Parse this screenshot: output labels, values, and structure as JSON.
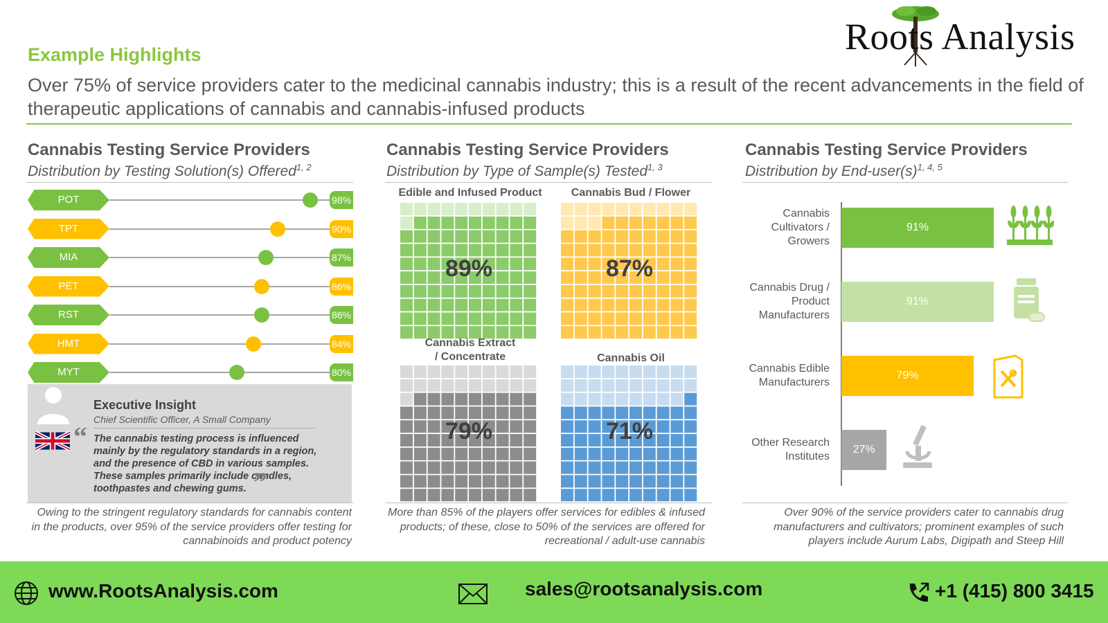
{
  "brand": {
    "name": "Roots Analysis"
  },
  "header": {
    "eyebrow": "Example Highlights",
    "headline": "Over 75% of service providers cater to the medicinal cannabis industry; this is a result of the recent advancements in the field of therapeutic applications of cannabis and cannabis-infused products"
  },
  "panels": [
    {
      "title": "Cannabis Testing Service Providers",
      "subtitle": "Distribution by Testing Solution(s) Offered",
      "sup": "1, 2",
      "footnote": "Owing to the stringent regulatory standards for cannabis content in the products, over 95% of the service providers offer testing for cannabinoids and product potency"
    },
    {
      "title": "Cannabis Testing Service Providers",
      "subtitle": "Distribution by Type of Sample(s) Tested",
      "sup": "1, 3",
      "footnote": "More than 85% of the players offer services for edibles & infused products; of these, close to 50% of the services are offered for recreational / adult-use cannabis"
    },
    {
      "title": "Cannabis Testing Service Providers",
      "subtitle": "Distribution by End-user(s)",
      "sup": "1, 4, 5",
      "footnote": "Over 90% of the service providers cater to cannabis drug manufacturers and cultivators; prominent examples of such players include Aurum Labs, Digipath and Steep Hill"
    }
  ],
  "insight": {
    "title": "Executive Insight",
    "role": "Chief Scientific Officer, A Small Company",
    "quote": "The cannabis testing process is influenced mainly by the regulatory standards in a region, and the presence of CBD in various samples. These samples primarily include candles, toothpastes and chewing gums."
  },
  "chart_data": [
    {
      "type": "lollipop",
      "title": "Distribution by Testing Solution(s) Offered",
      "categories": [
        "POT",
        "TPT",
        "MIA",
        "PET",
        "RST",
        "HMT",
        "MYT"
      ],
      "values": [
        98,
        90,
        87,
        86,
        86,
        84,
        80
      ],
      "labels": [
        "98%",
        "90%",
        "87%",
        "86%",
        "86%",
        "84%",
        "80%"
      ],
      "colors": [
        "#7ac143",
        "#ffc000",
        "#7ac143",
        "#ffc000",
        "#7ac143",
        "#ffc000",
        "#7ac143"
      ],
      "xlim": [
        0,
        100
      ]
    },
    {
      "type": "waffle",
      "title": "Distribution by Type of Sample(s) Tested",
      "categories": [
        "Edible and Infused Product",
        "Cannabis Bud / Flower",
        "Cannabis Extract / Concentrate",
        "Cannabis Oil"
      ],
      "values": [
        89,
        87,
        79,
        71
      ],
      "labels": [
        "89%",
        "87%",
        "79%",
        "71%"
      ],
      "colors": [
        "#8ccb6a",
        "#ffc94d",
        "#8c8c8c",
        "#5b9bd5"
      ],
      "empty_colors": [
        "#d8eecb",
        "#ffe9b0",
        "#d9d9d9",
        "#c7dcf0"
      ]
    },
    {
      "type": "bar",
      "orientation": "horizontal",
      "title": "Distribution by End-user(s)",
      "categories": [
        "Cannabis Cultivators / Growers",
        "Cannabis Drug / Product Manufacturers",
        "Cannabis Edible Manufacturers",
        "Other Research Institutes"
      ],
      "category_lines": [
        [
          "Cannabis",
          "Cultivators /",
          "Growers"
        ],
        [
          "Cannabis Drug /",
          "Product",
          "Manufacturers"
        ],
        [
          "Cannabis Edible",
          "Manufacturers"
        ],
        [
          "Other Research",
          "Institutes"
        ]
      ],
      "values": [
        91,
        91,
        79,
        27
      ],
      "labels": [
        "91%",
        "91%",
        "79%",
        "27%"
      ],
      "colors": [
        "#7ac143",
        "#c5e0a5",
        "#ffc000",
        "#a6a6a6"
      ],
      "icons": [
        "wheat-icon",
        "medicine-bottle-icon",
        "edible-package-icon",
        "microscope-icon"
      ],
      "xlim": [
        0,
        100
      ]
    }
  ],
  "footer": {
    "website": "www.RootsAnalysis.com",
    "email": "sales@rootsanalysis.com",
    "phone": "+1 (415) 800 3415"
  },
  "icons": {
    "logo": "tree-icon",
    "avatar": "person-icon",
    "flag": "uk-flag-icon",
    "web": "globe-icon",
    "mail": "envelope-icon",
    "phone": "phone-icon"
  }
}
